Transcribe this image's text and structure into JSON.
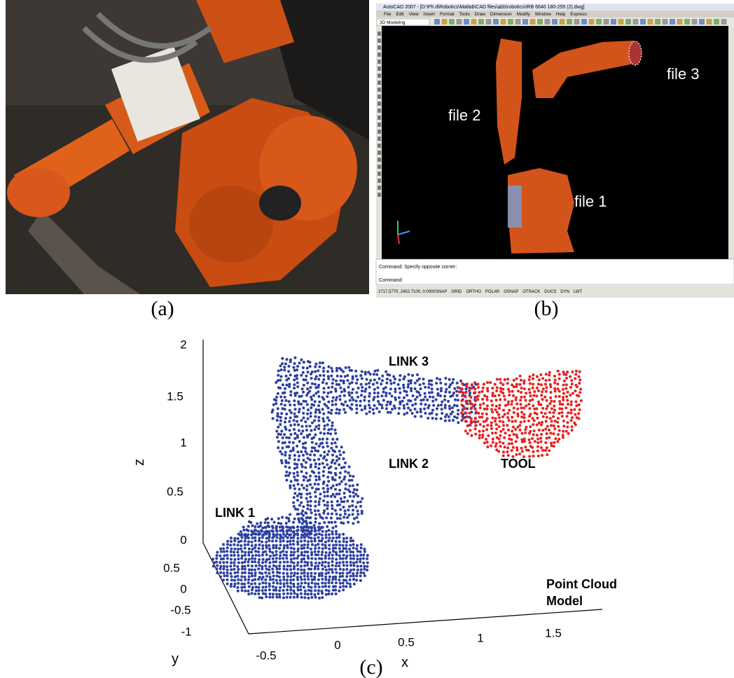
{
  "panels": [
    {
      "caption": "(a)"
    },
    {
      "caption": "(b)",
      "window_title": "AutoCAD 2007 - [D:\\Ph.d\\Robotics\\Matlab\\CAD files\\abb\\robotics\\IRB 6640 180-255 (2).dwg]",
      "menu": [
        "File",
        "Edit",
        "View",
        "Insert",
        "Format",
        "Tools",
        "Draw",
        "Dimension",
        "Modify",
        "Window",
        "Help",
        "Express"
      ],
      "workspace": "3D Modeling",
      "labels": [
        "file 2",
        "file 3",
        "file 1"
      ],
      "command_lines": [
        "Command: Specify opposite corner:",
        "Command:"
      ],
      "coordinates": "2717.5770, 2452.7100, 0.0000",
      "status_buttons": [
        "SNAP",
        "GRID",
        "ORTHO",
        "POLAR",
        "OSNAP",
        "OTRACK",
        "DUCS",
        "DYN",
        "LWT"
      ]
    },
    {
      "caption": "(c)",
      "z_label": "z",
      "y_label": "y",
      "x_label": "x",
      "z_ticks": [
        "2",
        "1.5",
        "1",
        "0.5",
        "0"
      ],
      "y_ticks": [
        "0.5",
        "0",
        "-0.5",
        "-1"
      ],
      "x_ticks": [
        "-0.5",
        "0",
        "0.5",
        "1",
        "1.5"
      ],
      "annotations": [
        "LINK 3",
        "LINK 2",
        "LINK 1",
        "TOOL"
      ],
      "model_label": [
        "Point Cloud",
        "Model"
      ]
    }
  ]
}
